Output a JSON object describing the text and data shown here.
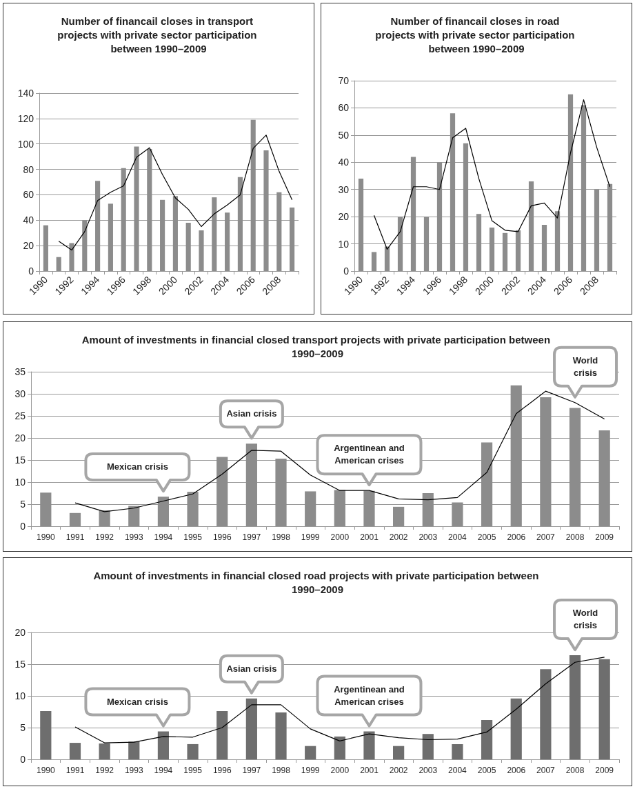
{
  "chart_data": [
    {
      "type": "bar",
      "title": "Number of financail closes in transport projects with private sector participation between 1990–2009",
      "categories": [
        "1990",
        null,
        "1992",
        null,
        "1994",
        null,
        "1996",
        null,
        "1998",
        null,
        "2000",
        null,
        "2002",
        null,
        "2004",
        null,
        "2006",
        null,
        "2008",
        null
      ],
      "series": [
        {
          "color": "#8c8c8c",
          "values": [
            36,
            11,
            22,
            40,
            71,
            53,
            81,
            98,
            96,
            56,
            59,
            38,
            32,
            58,
            46,
            74,
            119,
            95,
            62,
            50
          ]
        },
        {
          "type": "line",
          "color": "#000000",
          "values": [
            null,
            23.5,
            16.5,
            31,
            55.5,
            62,
            67,
            89.5,
            97,
            76,
            57.5,
            48.5,
            35,
            45,
            52,
            60,
            96.5,
            107,
            78.5,
            56
          ]
        }
      ],
      "ylim": [
        0,
        140
      ],
      "yticks": [
        0,
        20,
        40,
        60,
        80,
        100,
        120,
        140
      ],
      "grid": "y",
      "marker": "none"
    },
    {
      "type": "bar",
      "title": "Number of financail closes in road projects with private sector participation between 1990–2009",
      "categories": [
        "1990",
        null,
        "1992",
        null,
        "1994",
        null,
        "1996",
        null,
        "1998",
        null,
        "2000",
        null,
        "2002",
        null,
        "2004",
        null,
        "2006",
        null,
        "2008",
        null
      ],
      "series": [
        {
          "color": "#8c8c8c",
          "values": [
            34,
            7,
            9,
            20,
            42,
            20,
            40,
            58,
            47,
            21,
            16,
            14,
            15,
            33,
            17,
            22,
            65,
            61,
            30,
            32
          ]
        },
        {
          "type": "line",
          "color": "#000000",
          "values": [
            null,
            20.5,
            8,
            14.5,
            31,
            31,
            30,
            49,
            52.5,
            34,
            18.5,
            15,
            14.5,
            24,
            25,
            19.5,
            43.5,
            63,
            45.5,
            31
          ]
        }
      ],
      "ylim": [
        0,
        70
      ],
      "yticks": [
        0,
        10,
        20,
        30,
        40,
        50,
        60,
        70
      ],
      "grid": "y",
      "marker": "none"
    },
    {
      "type": "bar",
      "title": "Amount of investments in financial closed transport projects with private participation between 1990–2009",
      "categories": [
        "1990",
        "1991",
        "1992",
        "1993",
        "1994",
        "1995",
        "1996",
        "1997",
        "1998",
        "1999",
        "2000",
        "2001",
        "2002",
        "2003",
        "2004",
        "2005",
        "2006",
        "2007",
        "2008",
        "2009"
      ],
      "series": [
        {
          "color": "#8c8c8c",
          "values": [
            7.6,
            3.0,
            3.6,
            4.6,
            6.7,
            7.8,
            15.7,
            18.7,
            15.3,
            7.9,
            8.2,
            8.0,
            4.4,
            7.5,
            5.4,
            19.0,
            31.9,
            29.2,
            26.8,
            21.7
          ]
        },
        {
          "type": "line",
          "color": "#000000",
          "values": [
            null,
            5.3,
            3.3,
            4.1,
            5.7,
            7.3,
            11.8,
            17.2,
            17.0,
            11.6,
            8.1,
            8.1,
            6.2,
            6.0,
            6.5,
            12.2,
            25.5,
            30.6,
            28.0,
            24.3
          ]
        }
      ],
      "ylim": [
        0,
        35
      ],
      "yticks": [
        0,
        5,
        10,
        15,
        20,
        25,
        30,
        35
      ],
      "grid": "y",
      "marker": "none",
      "annotations": [
        "Mexican crisis",
        "Asian crisis",
        "Argentinean and American crises",
        "World crisis"
      ]
    },
    {
      "type": "bar",
      "title": "Amount of investments in financial closed road projects with private participation between 1990–2009",
      "categories": [
        "1990",
        "1991",
        "1992",
        "1993",
        "1994",
        "1995",
        "1996",
        "1997",
        "1998",
        "1999",
        "2000",
        "2001",
        "2002",
        "2003",
        "2004",
        "2005",
        "2006",
        "2007",
        "2008",
        "2009"
      ],
      "series": [
        {
          "color": "#6e6e6e",
          "values": [
            7.6,
            2.6,
            2.5,
            2.8,
            4.4,
            2.4,
            7.6,
            9.6,
            7.4,
            2.1,
            3.6,
            4.4,
            2.1,
            4.0,
            2.4,
            6.2,
            9.6,
            14.2,
            16.4,
            15.8
          ]
        },
        {
          "type": "line",
          "color": "#000000",
          "values": [
            null,
            5.1,
            2.6,
            2.7,
            3.6,
            3.5,
            5.0,
            8.6,
            8.6,
            4.8,
            2.9,
            4.0,
            3.4,
            3.1,
            3.2,
            4.3,
            7.9,
            11.9,
            15.3,
            16.1
          ]
        }
      ],
      "ylim": [
        0,
        20
      ],
      "yticks": [
        0,
        5,
        10,
        15,
        20
      ],
      "grid": "y",
      "marker": "none",
      "annotations": [
        "Mexican crisis",
        "Asian crisis",
        "Argentinean and American crises",
        "World crisis"
      ]
    }
  ]
}
